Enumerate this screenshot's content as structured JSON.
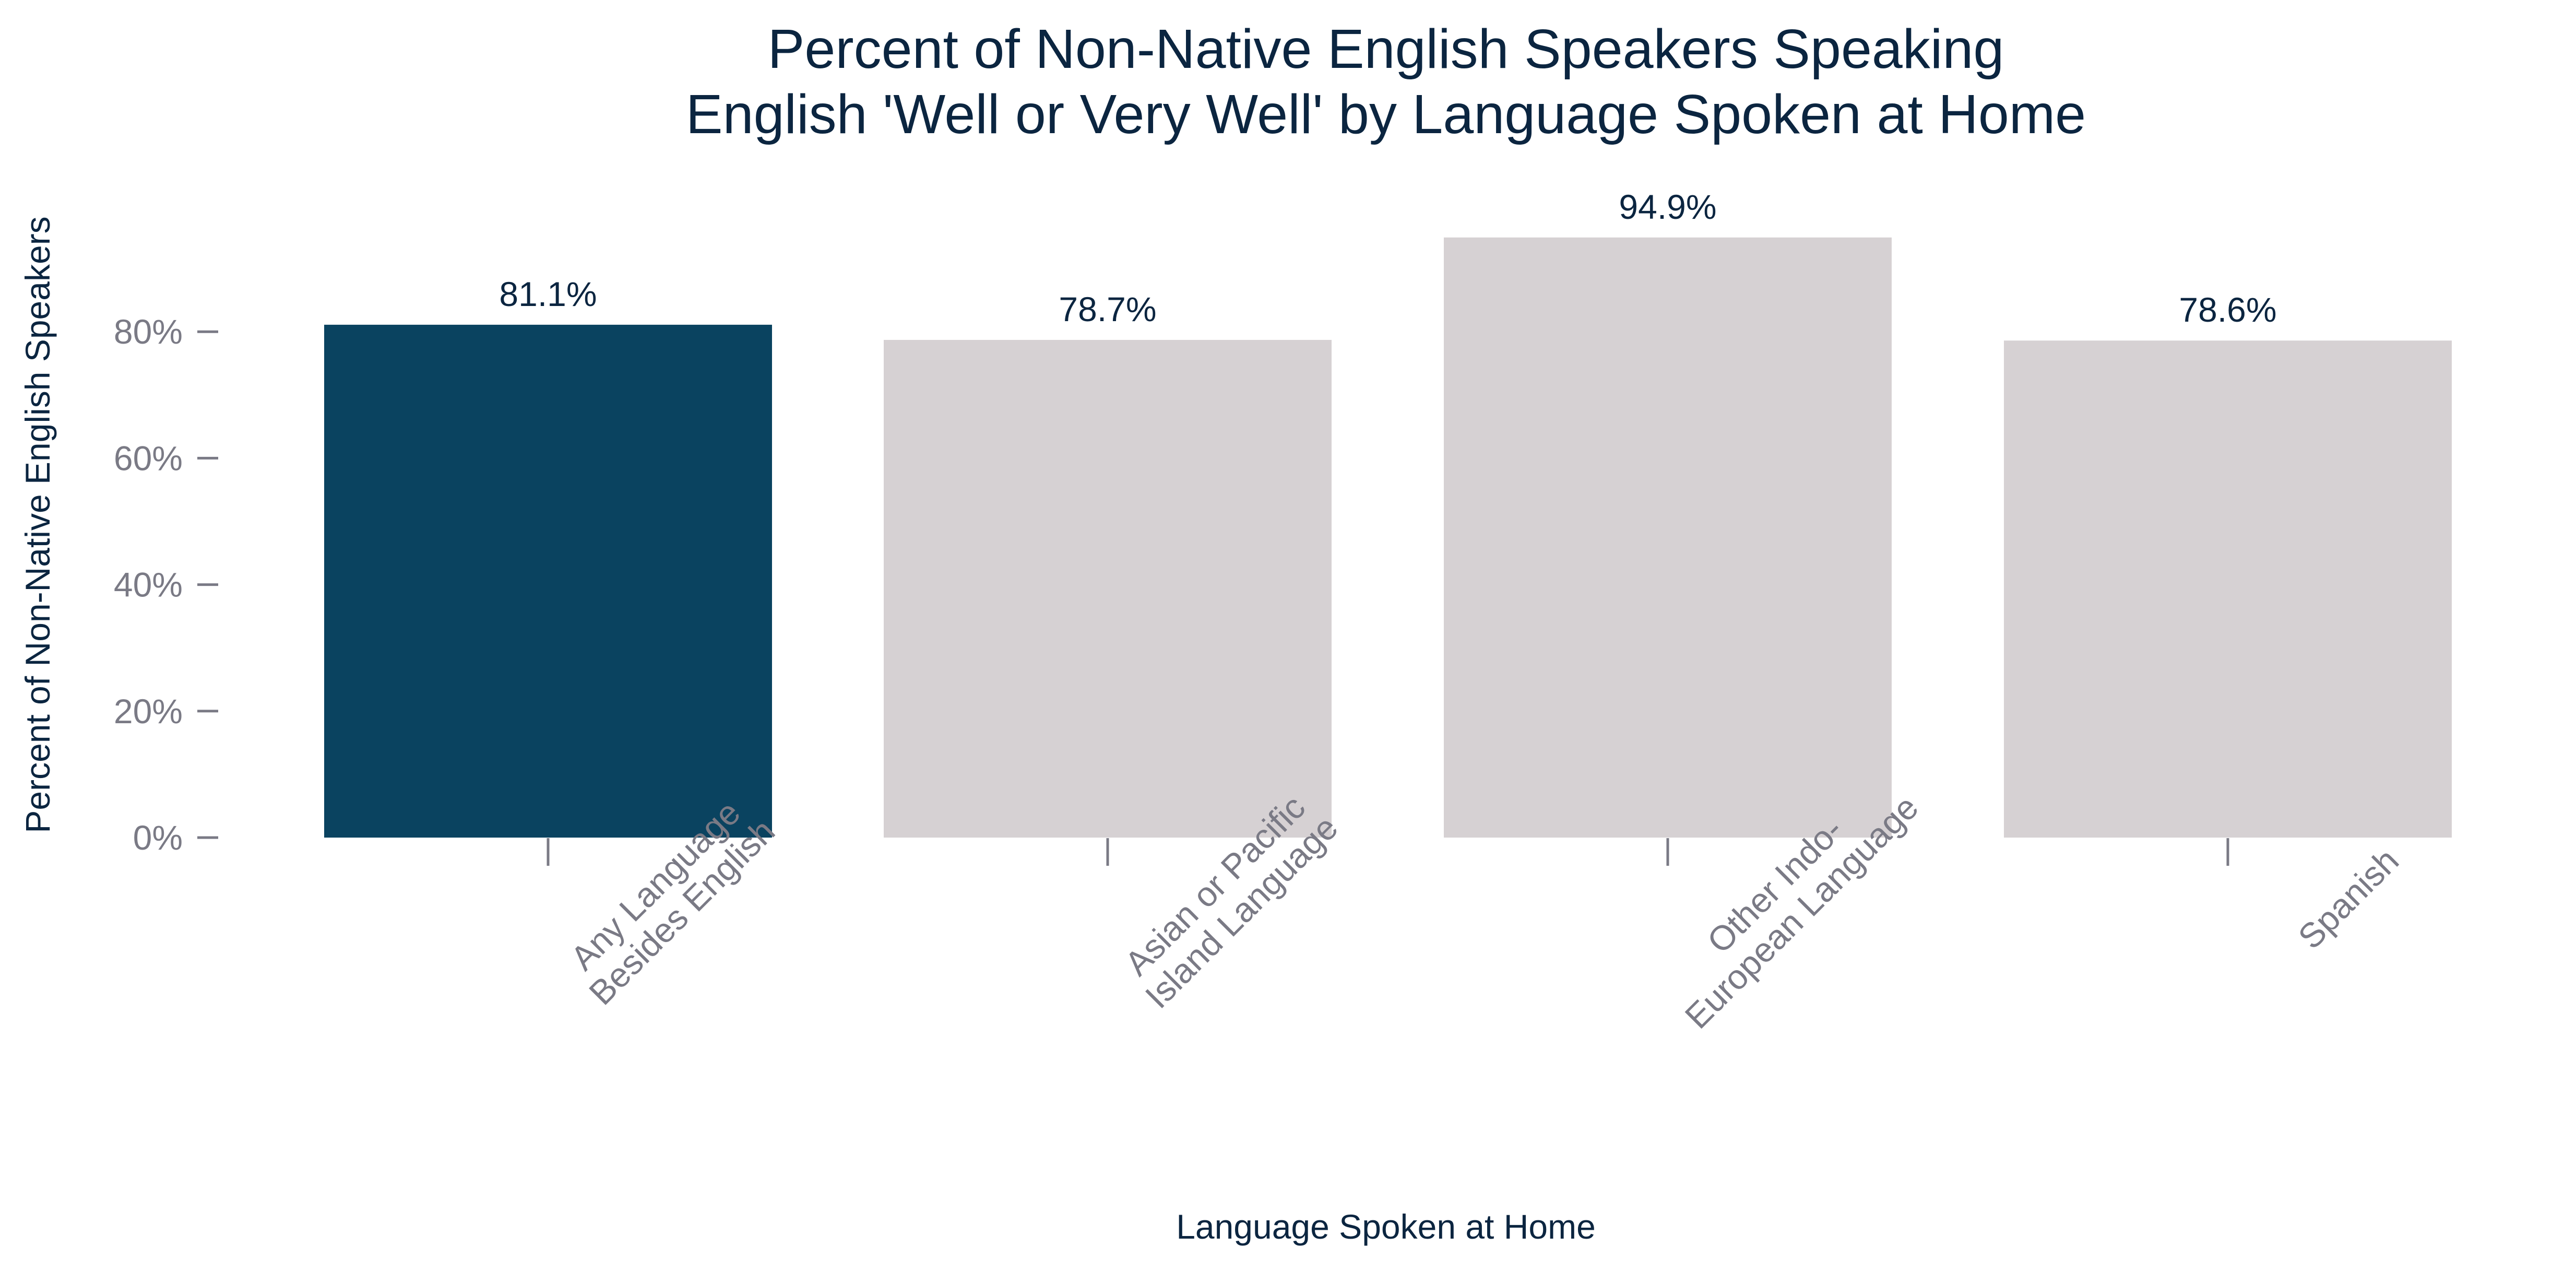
{
  "chart_data": {
    "type": "bar",
    "title_lines": [
      "Percent of Non-Native English Speakers Speaking",
      "English 'Well or Very Well' by Language Spoken at Home"
    ],
    "xlabel": "Language Spoken at Home",
    "ylabel": "Percent of Non-Native English Speakers",
    "categories": [
      [
        "Any Language",
        "Besides English"
      ],
      [
        "Asian or Pacific",
        "Island Language"
      ],
      [
        "Other Indo-",
        "European Language"
      ],
      [
        "Spanish"
      ]
    ],
    "values": [
      81.1,
      78.7,
      94.9,
      78.6
    ],
    "value_labels": [
      "81.1%",
      "78.7%",
      "94.9%",
      "78.6%"
    ],
    "bar_colors": [
      "#0a4360",
      "#d6d1d3",
      "#d6d1d3",
      "#d6d1d3"
    ],
    "yticks": [
      0,
      20,
      40,
      60,
      80
    ],
    "ytick_labels": [
      "0%",
      "20%",
      "40%",
      "60%",
      "80%"
    ],
    "ylim": [
      0,
      100
    ],
    "grid": false,
    "legend": "none",
    "colors": {
      "text": "#0b2540",
      "tick": "#7a7a85"
    }
  }
}
